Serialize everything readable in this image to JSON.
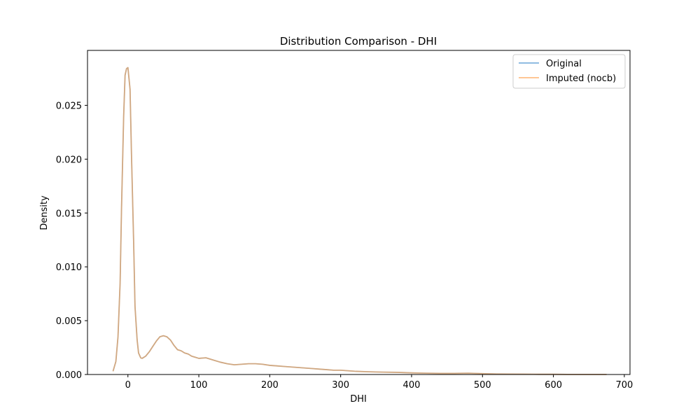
{
  "chart_data": {
    "type": "line",
    "title": "Distribution Comparison - DHI",
    "xlabel": "DHI",
    "ylabel": "Density",
    "xlim": [
      -57,
      708
    ],
    "ylim": [
      0,
      0.0301
    ],
    "xticks": [
      0,
      100,
      200,
      300,
      400,
      500,
      600,
      700
    ],
    "yticks": [
      0.0,
      0.005,
      0.01,
      0.015,
      0.02,
      0.025
    ],
    "ytick_labels": [
      "0.000",
      "0.005",
      "0.010",
      "0.015",
      "0.020",
      "0.025"
    ],
    "grid": false,
    "legend_position": "upper right",
    "series": [
      {
        "name": "Original",
        "color": "#7fb3de",
        "x": [
          -21,
          -17,
          -14,
          -11,
          -9,
          -6,
          -4,
          -2,
          0,
          3,
          5,
          8,
          10,
          13,
          15,
          18,
          20,
          25,
          30,
          35,
          40,
          45,
          50,
          55,
          60,
          65,
          70,
          75,
          80,
          85,
          90,
          95,
          100,
          110,
          120,
          130,
          140,
          150,
          160,
          170,
          180,
          190,
          200,
          210,
          220,
          230,
          240,
          250,
          260,
          270,
          280,
          290,
          300,
          320,
          340,
          360,
          380,
          400,
          420,
          440,
          460,
          480,
          500,
          520,
          540,
          560,
          580,
          600,
          620,
          640,
          660,
          675
        ],
        "values": [
          0.0003,
          0.0012,
          0.0035,
          0.0085,
          0.0155,
          0.024,
          0.0278,
          0.0284,
          0.0285,
          0.0265,
          0.0205,
          0.0125,
          0.0063,
          0.0032,
          0.002,
          0.00155,
          0.0015,
          0.0017,
          0.0021,
          0.0026,
          0.0031,
          0.0035,
          0.0036,
          0.0035,
          0.0032,
          0.0027,
          0.0023,
          0.0022,
          0.002,
          0.0019,
          0.0017,
          0.0016,
          0.0015,
          0.00155,
          0.00135,
          0.00115,
          0.001,
          0.0009,
          0.00095,
          0.001,
          0.001,
          0.00095,
          0.00085,
          0.0008,
          0.00075,
          0.0007,
          0.00065,
          0.0006,
          0.00055,
          0.0005,
          0.00045,
          0.0004,
          0.0004,
          0.0003,
          0.00025,
          0.00022,
          0.0002,
          0.00015,
          0.00012,
          0.0001,
          0.0001,
          0.00012,
          8e-05,
          5e-05,
          4e-05,
          3e-05,
          2e-05,
          2e-05,
          1e-05,
          1e-05,
          1e-05,
          1e-05
        ]
      },
      {
        "name": "Imputed (nocb)",
        "color": "#ffbe86",
        "x": [
          -21,
          -17,
          -14,
          -11,
          -9,
          -6,
          -4,
          -2,
          0,
          3,
          5,
          8,
          10,
          13,
          15,
          18,
          20,
          25,
          30,
          35,
          40,
          45,
          50,
          55,
          60,
          65,
          70,
          75,
          80,
          85,
          90,
          95,
          100,
          110,
          120,
          130,
          140,
          150,
          160,
          170,
          180,
          190,
          200,
          210,
          220,
          230,
          240,
          250,
          260,
          270,
          280,
          290,
          300,
          320,
          340,
          360,
          380,
          400,
          420,
          440,
          460,
          480,
          500,
          520,
          540,
          560,
          580,
          600,
          620,
          640,
          660,
          675
        ],
        "values": [
          0.0003,
          0.0012,
          0.0035,
          0.0085,
          0.0155,
          0.024,
          0.0278,
          0.0284,
          0.0285,
          0.0265,
          0.0205,
          0.0125,
          0.0063,
          0.0032,
          0.002,
          0.00155,
          0.0015,
          0.0017,
          0.0021,
          0.0026,
          0.0031,
          0.0035,
          0.0036,
          0.0035,
          0.0032,
          0.0027,
          0.0023,
          0.0022,
          0.002,
          0.0019,
          0.0017,
          0.0016,
          0.0015,
          0.00155,
          0.00135,
          0.00115,
          0.001,
          0.0009,
          0.00095,
          0.001,
          0.001,
          0.00095,
          0.00085,
          0.0008,
          0.00075,
          0.0007,
          0.00065,
          0.0006,
          0.00055,
          0.0005,
          0.00045,
          0.0004,
          0.0004,
          0.0003,
          0.00025,
          0.00022,
          0.0002,
          0.00015,
          0.00012,
          0.0001,
          0.0001,
          0.00012,
          8e-05,
          5e-05,
          4e-05,
          3e-05,
          2e-05,
          2e-05,
          1e-05,
          1e-05,
          1e-05,
          1e-05
        ]
      }
    ],
    "overlap_line_color": "#c0a080"
  }
}
